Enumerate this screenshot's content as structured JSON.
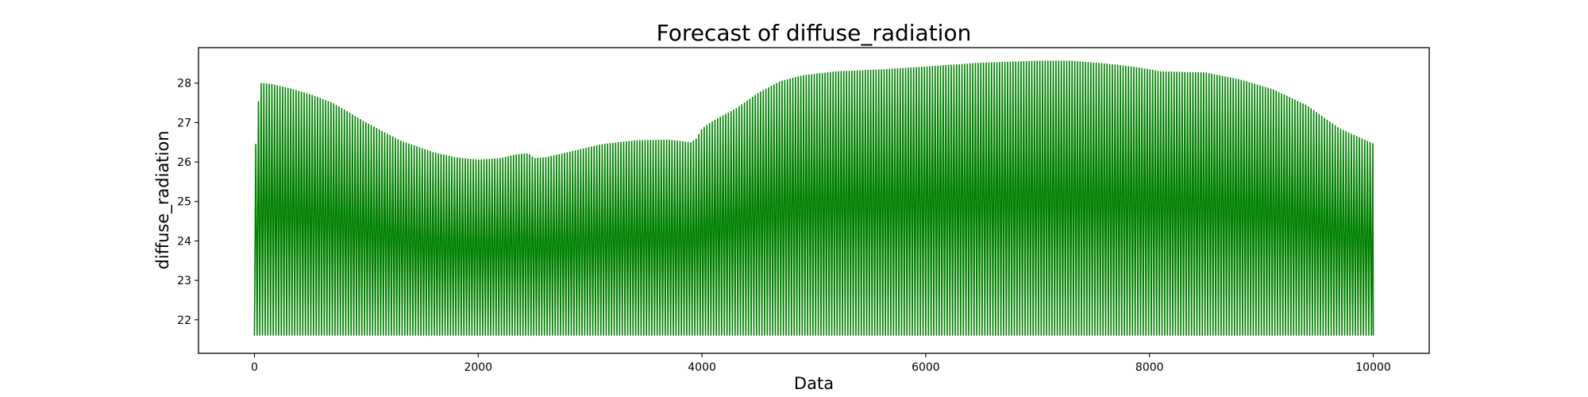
{
  "chart_data": {
    "type": "line",
    "title": "Forecast of diffuse_radiation",
    "xlabel": "Data",
    "ylabel": "diffuse_radiation",
    "xlim": [
      -500,
      10500
    ],
    "ylim": [
      21.15,
      28.9
    ],
    "xticks": [
      0,
      2000,
      4000,
      6000,
      8000,
      10000
    ],
    "yticks": [
      22,
      23,
      24,
      25,
      26,
      27,
      28
    ],
    "grid": false,
    "legend": "none",
    "series": [
      {
        "color": "#008000",
        "x_range": [
          0,
          10000
        ],
        "cycle_period": 24,
        "trough": 21.6,
        "envelope_x": [
          0,
          20,
          40,
          60,
          80,
          150,
          300,
          500,
          700,
          1000,
          1300,
          1600,
          1800,
          2000,
          2200,
          2350,
          2450,
          2500,
          2600,
          2800,
          3100,
          3400,
          3700,
          3900,
          3950,
          4000,
          4100,
          4300,
          4500,
          4700,
          4900,
          5200,
          5600,
          6000,
          6500,
          7000,
          7300,
          7600,
          7900,
          8100,
          8500,
          8800,
          9100,
          9400,
          9700,
          10000
        ],
        "envelope_y": [
          26.4,
          26.5,
          27.8,
          28.0,
          28.0,
          27.98,
          27.88,
          27.72,
          27.5,
          27.0,
          26.55,
          26.25,
          26.12,
          26.06,
          26.1,
          26.2,
          26.22,
          26.1,
          26.12,
          26.25,
          26.45,
          26.55,
          26.57,
          26.5,
          26.6,
          26.85,
          27.05,
          27.35,
          27.75,
          28.05,
          28.2,
          28.3,
          28.35,
          28.42,
          28.52,
          28.57,
          28.57,
          28.5,
          28.4,
          28.3,
          28.27,
          28.1,
          27.85,
          27.45,
          26.85,
          26.47
        ]
      }
    ]
  }
}
